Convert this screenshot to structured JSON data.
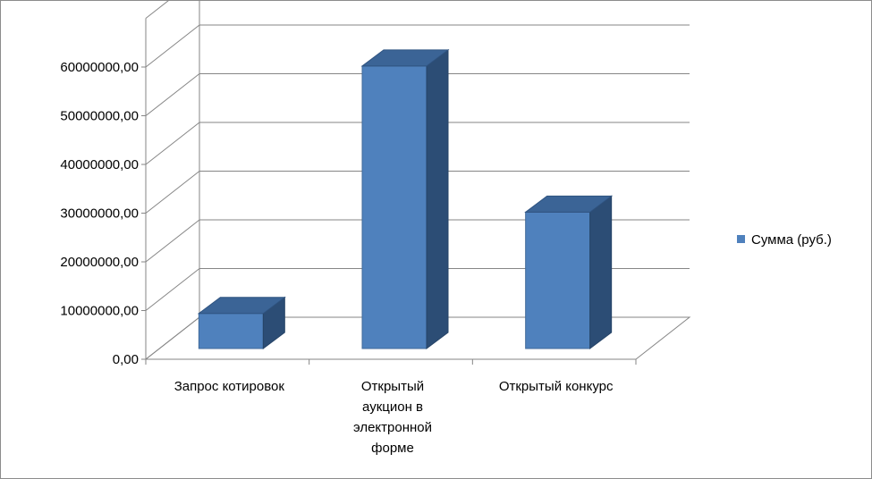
{
  "chart_data": {
    "type": "bar",
    "style": "3d-clustered-column",
    "categories": [
      "Запрос котировок",
      "Открытый аукцион в электронной форме",
      "Открытый конкурс"
    ],
    "category_lines": [
      [
        "Запрос котировок"
      ],
      [
        "Открытый",
        "аукцион в",
        "электронной",
        "форме"
      ],
      [
        "Открытый конкурс"
      ]
    ],
    "series": [
      {
        "name": "Сумма (руб.)",
        "values": [
          7200000,
          58000000,
          28000000
        ],
        "color": "#4f81bd"
      }
    ],
    "ylim": [
      0,
      60000000
    ],
    "yticks": [
      0,
      10000000,
      20000000,
      30000000,
      40000000,
      50000000,
      60000000
    ],
    "ytick_labels": [
      "0,00",
      "10000000,00",
      "20000000,00",
      "30000000,00",
      "40000000,00",
      "50000000,00",
      "60000000,00"
    ],
    "grid": true,
    "legend": "right"
  }
}
